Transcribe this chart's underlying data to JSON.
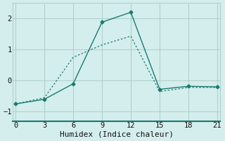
{
  "xlabel": "Humidex (Indice chaleur)",
  "bg_color": "#d4eeed",
  "grid_color": "#b0d0cc",
  "line_color": "#1a7a6e",
  "spine_color": "#1a7a6e",
  "line1_x": [
    0,
    3,
    6,
    9,
    12,
    15,
    18,
    21
  ],
  "line1_y": [
    -0.75,
    -0.6,
    -0.1,
    1.88,
    2.2,
    -0.28,
    -0.18,
    -0.2
  ],
  "line2_x": [
    0,
    3,
    6,
    9,
    12,
    15,
    18,
    21
  ],
  "line2_y": [
    -0.75,
    -0.55,
    0.75,
    1.15,
    1.43,
    -0.35,
    -0.22,
    -0.22
  ],
  "xlim": [
    -0.3,
    21.3
  ],
  "ylim": [
    -1.3,
    2.5
  ],
  "xticks": [
    0,
    3,
    6,
    9,
    12,
    15,
    18,
    21
  ],
  "yticks": [
    -1,
    0,
    1,
    2
  ],
  "tick_fontsize": 7.5,
  "xlabel_fontsize": 8
}
